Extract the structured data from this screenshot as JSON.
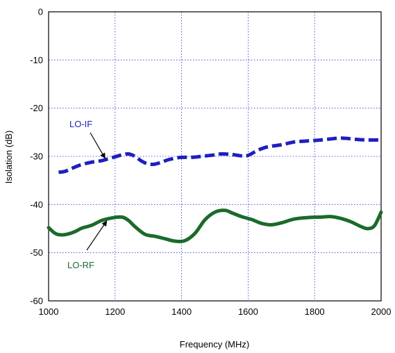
{
  "chart_data": {
    "type": "line",
    "title": "",
    "xlabel": "Frequency (MHz)",
    "ylabel": "Isolation (dB)",
    "xlim": [
      1000,
      2000
    ],
    "ylim": [
      -60,
      0
    ],
    "xticks": [
      1000,
      1200,
      1400,
      1600,
      1800,
      2000
    ],
    "yticks": [
      0,
      -10,
      -20,
      -30,
      -40,
      -50,
      -60
    ],
    "xtick_labels": [
      "1000",
      "1200",
      "1400",
      "1600",
      "1800",
      "2000"
    ],
    "ytick_labels": [
      "0",
      "-10",
      "-20",
      "-30",
      "-40",
      "-50",
      "-60"
    ],
    "grid": true,
    "legend": "none",
    "annotations": [
      {
        "text": "LO-IF",
        "color": "#1f1fbf",
        "arrow_to": [
          1180,
          -30.8
        ]
      },
      {
        "text": "LO-RF",
        "color": "#1a6b2a",
        "arrow_to": [
          1185,
          -43.0
        ]
      }
    ],
    "series": [
      {
        "name": "LO-IF",
        "color": "#1f1fbf",
        "style": "dashed",
        "x": [
          1030,
          1050,
          1080,
          1100,
          1130,
          1160,
          1180,
          1200,
          1220,
          1240,
          1260,
          1280,
          1300,
          1320,
          1340,
          1360,
          1380,
          1400,
          1430,
          1460,
          1500,
          1520,
          1550,
          1580,
          1600,
          1630,
          1660,
          1700,
          1740,
          1780,
          1820,
          1860,
          1880,
          1900,
          1930,
          1960,
          2000
        ],
        "y": [
          -33.3,
          -33.1,
          -32.2,
          -31.7,
          -31.2,
          -30.9,
          -30.5,
          -30.1,
          -29.7,
          -29.5,
          -30.0,
          -31.0,
          -31.6,
          -31.6,
          -31.2,
          -30.7,
          -30.4,
          -30.2,
          -30.2,
          -30.0,
          -29.7,
          -29.5,
          -29.6,
          -29.9,
          -29.8,
          -28.7,
          -28.0,
          -27.6,
          -27.0,
          -26.8,
          -26.6,
          -26.3,
          -26.2,
          -26.3,
          -26.5,
          -26.6,
          -26.6
        ]
      },
      {
        "name": "LO-RF",
        "color": "#1a6b2a",
        "style": "solid",
        "x": [
          1000,
          1020,
          1040,
          1060,
          1080,
          1100,
          1130,
          1160,
          1190,
          1220,
          1240,
          1260,
          1290,
          1320,
          1350,
          1380,
          1410,
          1440,
          1470,
          1500,
          1530,
          1550,
          1580,
          1610,
          1640,
          1670,
          1700,
          1740,
          1780,
          1820,
          1850,
          1880,
          1910,
          1940,
          1960,
          1980,
          2000
        ],
        "y": [
          -44.8,
          -46.0,
          -46.3,
          -46.1,
          -45.6,
          -44.9,
          -44.3,
          -43.3,
          -42.8,
          -42.6,
          -43.3,
          -44.6,
          -46.2,
          -46.6,
          -47.1,
          -47.6,
          -47.5,
          -46.0,
          -43.2,
          -41.6,
          -41.2,
          -41.7,
          -42.5,
          -43.1,
          -43.9,
          -44.2,
          -43.8,
          -43.0,
          -42.7,
          -42.6,
          -42.5,
          -42.9,
          -43.6,
          -44.6,
          -45.0,
          -44.4,
          -41.6
        ]
      }
    ]
  }
}
